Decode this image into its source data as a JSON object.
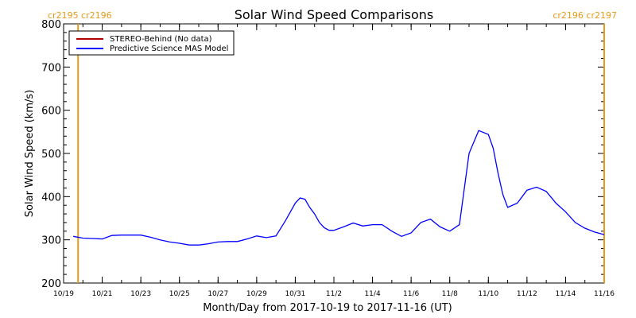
{
  "chart_data": {
    "type": "line",
    "title": "Solar Wind Speed Comparisons",
    "xlabel": "Month/Day from 2017-10-19 to 2017-11-16 (UT)",
    "ylabel": "Solar Wind Speed (km/s)",
    "xlim": [
      "10/19",
      "11/16"
    ],
    "ylim": [
      200,
      800
    ],
    "y_ticks": [
      200,
      300,
      400,
      500,
      600,
      700,
      800
    ],
    "x_tick_labels": [
      "10/19",
      "10/21",
      "10/23",
      "10/25",
      "10/27",
      "10/29",
      "10/31",
      "11/2",
      "11/4",
      "11/6",
      "11/8",
      "11/10",
      "11/12",
      "11/14",
      "11/16"
    ],
    "grid": false,
    "legend_position": "top-left",
    "series": [
      {
        "name": "STEREO-Behind (No data)",
        "color": "#b00000",
        "x": [],
        "y": []
      },
      {
        "name": "Predictive Science MAS Model",
        "color": "#0000ff",
        "x": [
          "10/19 12:00",
          "10/20 00:00",
          "10/20 12:00",
          "10/21 00:00",
          "10/21 12:00",
          "10/22 00:00",
          "10/22 12:00",
          "10/23 00:00",
          "10/23 12:00",
          "10/24 00:00",
          "10/24 12:00",
          "10/25 00:00",
          "10/25 12:00",
          "10/26 00:00",
          "10/26 12:00",
          "10/27 00:00",
          "10/27 12:00",
          "10/28 00:00",
          "10/28 12:00",
          "10/29 00:00",
          "10/29 12:00",
          "10/30 00:00",
          "10/30 12:00",
          "10/31 00:00",
          "10/31 06:00",
          "10/31 12:00",
          "10/31 18:00",
          "11/1 00:00",
          "11/1 06:00",
          "11/1 12:00",
          "11/1 18:00",
          "11/2 00:00",
          "11/2 12:00",
          "11/3 00:00",
          "11/3 12:00",
          "11/4 00:00",
          "11/4 12:00",
          "11/5 00:00",
          "11/5 12:00",
          "11/6 00:00",
          "11/6 12:00",
          "11/7 00:00",
          "11/7 12:00",
          "11/8 00:00",
          "11/8 12:00",
          "11/9 00:00",
          "11/9 12:00",
          "11/10 00:00",
          "11/10 06:00",
          "11/10 12:00",
          "11/10 18:00",
          "11/11 00:00",
          "11/11 12:00",
          "11/12 00:00",
          "11/12 12:00",
          "11/13 00:00",
          "11/13 12:00",
          "11/14 00:00",
          "11/14 12:00",
          "11/15 00:00",
          "11/15 12:00",
          "11/16 00:00"
        ],
        "y": [
          308,
          304,
          303,
          302,
          310,
          311,
          311,
          311,
          306,
          300,
          295,
          292,
          288,
          288,
          291,
          295,
          296,
          296,
          302,
          309,
          305,
          309,
          345,
          385,
          397,
          394,
          375,
          360,
          340,
          328,
          322,
          322,
          330,
          339,
          332,
          335,
          335,
          320,
          308,
          316,
          340,
          348,
          330,
          320,
          335,
          500,
          553,
          544,
          512,
          455,
          405,
          375,
          385,
          415,
          422,
          412,
          385,
          365,
          340,
          327,
          318,
          312
        ]
      }
    ],
    "vertical_markers": [
      {
        "x": "10/19 18:00",
        "label": "cr2195 cr2196",
        "color": "#e69a1a"
      },
      {
        "x": "11/16 00:00",
        "label": "cr2196 cr2197",
        "color": "#e69a1a"
      }
    ]
  }
}
